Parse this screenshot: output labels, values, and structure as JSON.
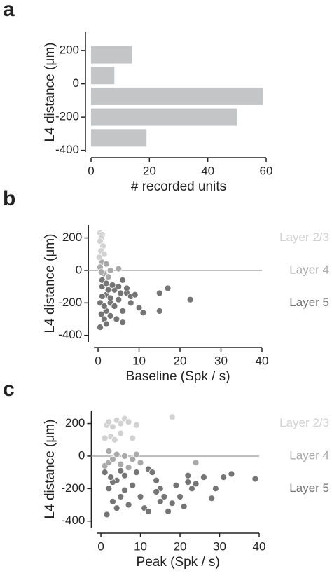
{
  "chart_data": [
    {
      "type": "barh",
      "panel_label": "a",
      "xlabel": "# recorded units",
      "ylabel": "L4 distance (μm)",
      "y": [
        175,
        50,
        -75,
        -200,
        -325
      ],
      "values": [
        14,
        8,
        59,
        50,
        19
      ],
      "color": "#c4c5c7",
      "xlim": [
        0,
        60
      ],
      "xticks": [
        0,
        20,
        40,
        60
      ],
      "ylim": [
        -410,
        310
      ],
      "yticks": [
        200,
        0,
        -200,
        -400
      ]
    },
    {
      "type": "scatter",
      "panel_label": "b",
      "xlabel": "Baseline (Spk / s)",
      "ylabel": "L4 distance (μm)",
      "xlim": [
        -1,
        40
      ],
      "xticks": [
        0,
        10,
        20,
        30,
        40
      ],
      "ylim": [
        -440,
        280
      ],
      "yticks": [
        200,
        0,
        -200,
        -400
      ],
      "hline": 0,
      "series": [
        {
          "name": "Layer 2/3",
          "color": "#d2d2d2",
          "x": [
            0.5,
            1,
            0.8,
            0.5,
            1.2,
            0.7,
            1.5,
            0.3
          ],
          "values": [
            230,
            220,
            200,
            180,
            150,
            120,
            100,
            80
          ]
        },
        {
          "name": "Layer 4",
          "color": "#a9a9a9",
          "x": [
            1,
            2,
            0.5,
            3,
            1.5,
            5,
            2.5,
            0.8
          ],
          "values": [
            50,
            40,
            20,
            0,
            -20,
            10,
            -40,
            -10
          ]
        },
        {
          "name": "Layer 5",
          "color": "#757575",
          "x": [
            1,
            2,
            3,
            4,
            5,
            6,
            7,
            8,
            10,
            11,
            15,
            15,
            17,
            22.5,
            6,
            0.5,
            1.5,
            2,
            3,
            4,
            0.5,
            1,
            2.5,
            3.5,
            5,
            6,
            7,
            9,
            1.5,
            2,
            0.8,
            4.5,
            3,
            5.5,
            8,
            1,
            2
          ],
          "values": [
            -100,
            -150,
            -200,
            -120,
            -180,
            -250,
            -140,
            -160,
            -230,
            -260,
            -250,
            -140,
            -110,
            -180,
            -320,
            -350,
            -300,
            -250,
            -280,
            -220,
            -200,
            -160,
            -120,
            -90,
            -100,
            -60,
            -110,
            -150,
            -220,
            -330,
            -270,
            -300,
            -170,
            -140,
            -200,
            -60,
            -80
          ]
        }
      ]
    },
    {
      "type": "scatter",
      "panel_label": "c",
      "xlabel": "Peak (Spk / s)",
      "ylabel": "L4 distance (μm)",
      "xlim": [
        -1,
        40
      ],
      "xticks": [
        0,
        10,
        20,
        30,
        40
      ],
      "ylim": [
        -440,
        280
      ],
      "yticks": [
        200,
        0,
        -200,
        -400
      ],
      "hline": 0,
      "series": [
        {
          "name": "Layer 2/3",
          "color": "#d2d2d2",
          "x": [
            1.5,
            2,
            3,
            4,
            5,
            6,
            7,
            18,
            2.5,
            5,
            8,
            9,
            3.5,
            1
          ],
          "values": [
            190,
            210,
            180,
            220,
            200,
            230,
            210,
            240,
            120,
            140,
            110,
            190,
            100,
            110
          ]
        },
        {
          "name": "Layer 4",
          "color": "#a9a9a9",
          "x": [
            1,
            2,
            3,
            4,
            5,
            6,
            7,
            9,
            10,
            24,
            2,
            8
          ],
          "values": [
            -60,
            -40,
            -20,
            10,
            -50,
            0,
            -70,
            10,
            -40,
            -40,
            30,
            -20
          ]
        },
        {
          "name": "Layer 5",
          "color": "#757575",
          "x": [
            1,
            2,
            3,
            1.5,
            4,
            5,
            6,
            7,
            8,
            9,
            10,
            11,
            12,
            13,
            14,
            15,
            15,
            16,
            17,
            19,
            20,
            21,
            22,
            22,
            23,
            24,
            26,
            28,
            29,
            31,
            33,
            39,
            18,
            14,
            12,
            6,
            4,
            3,
            5,
            2.5
          ],
          "values": [
            -100,
            -200,
            -280,
            -360,
            -150,
            -250,
            -120,
            -300,
            -180,
            -100,
            -250,
            -320,
            -80,
            -100,
            -150,
            -280,
            -200,
            -250,
            -340,
            -180,
            -250,
            -310,
            -120,
            -160,
            -200,
            -170,
            -130,
            -260,
            -200,
            -130,
            -110,
            -140,
            -290,
            -220,
            -340,
            -210,
            -320,
            -160,
            -90,
            -130
          ]
        }
      ]
    }
  ]
}
